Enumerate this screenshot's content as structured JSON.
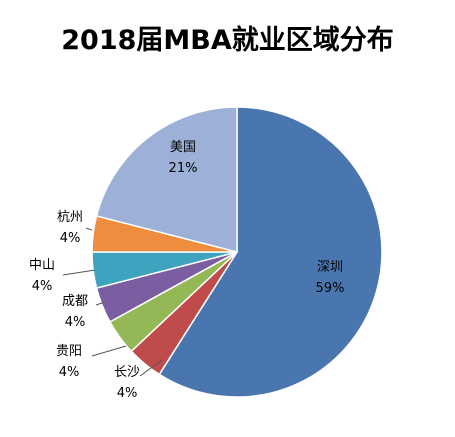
{
  "chart_data": {
    "type": "pie",
    "title": "2018届MBA就业区域分布",
    "slices": [
      {
        "name": "深圳",
        "value": 59,
        "label": "59%",
        "color": "#4a76b0"
      },
      {
        "name": "长沙",
        "value": 4,
        "label": "4%",
        "color": "#bf4b4b"
      },
      {
        "name": "贵阳",
        "value": 4,
        "label": "4%",
        "color": "#95b857"
      },
      {
        "name": "成都",
        "value": 4,
        "label": "4%",
        "color": "#7b5ea1"
      },
      {
        "name": "中山",
        "value": 4,
        "label": "4%",
        "color": "#3ea3bf"
      },
      {
        "name": "杭州",
        "value": 4,
        "label": "4%",
        "color": "#ee8d3d"
      },
      {
        "name": "美国",
        "value": 21,
        "label": "21%",
        "color": "#9db0d8"
      }
    ]
  }
}
